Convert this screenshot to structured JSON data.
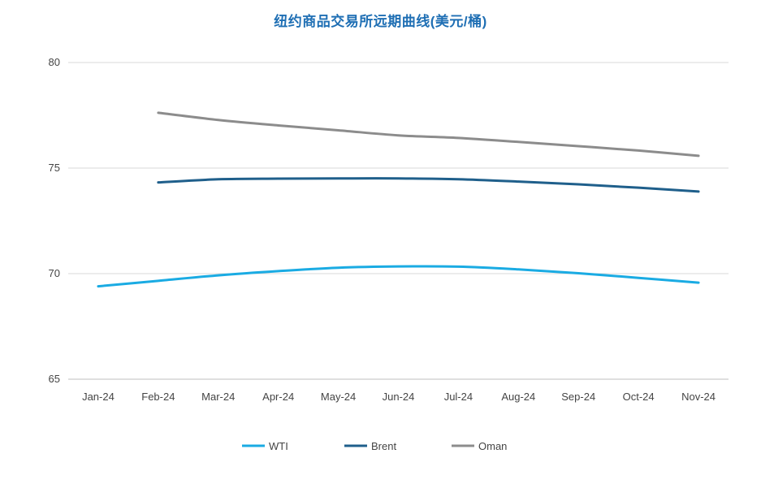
{
  "chart_data": {
    "type": "line",
    "title": "纽约商品交易所远期曲线(美元/桶)",
    "categories": [
      "Jan-24",
      "Feb-24",
      "Mar-24",
      "Apr-24",
      "May-24",
      "Jun-24",
      "Jul-24",
      "Aug-24",
      "Sep-24",
      "Oct-24",
      "Nov-24"
    ],
    "series": [
      {
        "name": "WTI",
        "color": "#1aabe3",
        "values": [
          69.4,
          69.66,
          69.92,
          70.12,
          70.28,
          70.34,
          70.33,
          70.2,
          70.02,
          69.8,
          69.57
        ]
      },
      {
        "name": "Brent",
        "color": "#1f5f8b",
        "values": [
          null,
          74.32,
          74.47,
          74.5,
          74.51,
          74.51,
          74.47,
          74.36,
          74.23,
          74.07,
          73.89
        ]
      },
      {
        "name": "Oman",
        "color": "#8c8c8c",
        "values": [
          null,
          77.62,
          77.28,
          77.02,
          76.79,
          76.55,
          76.43,
          76.24,
          76.04,
          75.83,
          75.58
        ]
      }
    ],
    "yticks": [
      65,
      70,
      75,
      80
    ],
    "ylim": [
      65,
      80
    ],
    "grid": true,
    "legend": "bottom"
  }
}
